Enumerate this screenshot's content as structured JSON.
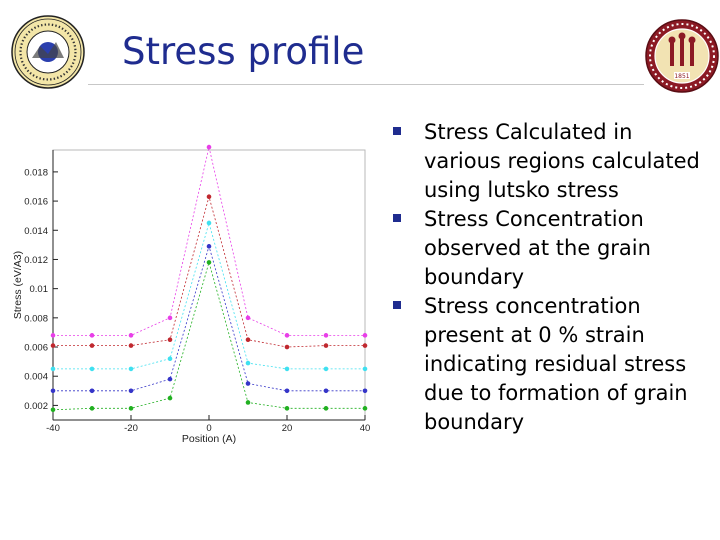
{
  "slide": {
    "title": "Stress profile",
    "bullets": [
      "Stress Calculated in various regions calculated using lutsko stress",
      "Stress Concentration observed at the grain boundary",
      "Stress concentration present at 0 % strain indicating residual stress due to formation of grain boundary"
    ]
  },
  "logos": {
    "left": {
      "icon": "university-seal-icon",
      "text": "ENGINEERING & MATERIALS"
    },
    "right": {
      "icon": "florida-state-university-seal-icon",
      "text": "FLORIDA STATE UNIVERSITY",
      "year": "1851"
    }
  },
  "chart_data": {
    "type": "line",
    "xlabel": "Position (A)",
    "ylabel": "Stress (eV/A3)",
    "xlim": [
      -40,
      40
    ],
    "ylim": [
      0.001,
      0.0195
    ],
    "xticks": [
      "-40",
      "-20",
      "0",
      "20",
      "40"
    ],
    "xtick_values": [
      -40,
      -20,
      0,
      20,
      40
    ],
    "yticks": [
      "0.002",
      "0.004",
      "0.006",
      "0.008",
      "0.01",
      "0.012",
      "0.014",
      "0.016",
      "0.018"
    ],
    "ytick_values": [
      0.002,
      0.004,
      0.006,
      0.008,
      0.01,
      0.012,
      0.014,
      0.016,
      0.018
    ],
    "x": [
      -40,
      -30,
      -20,
      -10,
      0,
      10,
      20,
      30,
      40
    ],
    "grid": false,
    "legend": "none",
    "series": [
      {
        "color": "#e83ee8",
        "values": [
          0.0068,
          0.0068,
          0.0068,
          0.008,
          0.0197,
          0.008,
          0.0068,
          0.0068,
          0.0068
        ]
      },
      {
        "color": "#c0282f",
        "values": [
          0.0061,
          0.0061,
          0.0061,
          0.0065,
          0.0163,
          0.0065,
          0.006,
          0.0061,
          0.0061
        ]
      },
      {
        "color": "#3fe0f0",
        "values": [
          0.0045,
          0.0045,
          0.0045,
          0.0052,
          0.0145,
          0.0049,
          0.0045,
          0.0045,
          0.0045
        ]
      },
      {
        "color": "#3535c8",
        "values": [
          0.003,
          0.003,
          0.003,
          0.0038,
          0.0129,
          0.0035,
          0.003,
          0.003,
          0.003
        ]
      },
      {
        "color": "#21b021",
        "values": [
          0.0017,
          0.0018,
          0.0018,
          0.0025,
          0.0118,
          0.0022,
          0.0018,
          0.0018,
          0.0018
        ]
      }
    ]
  }
}
